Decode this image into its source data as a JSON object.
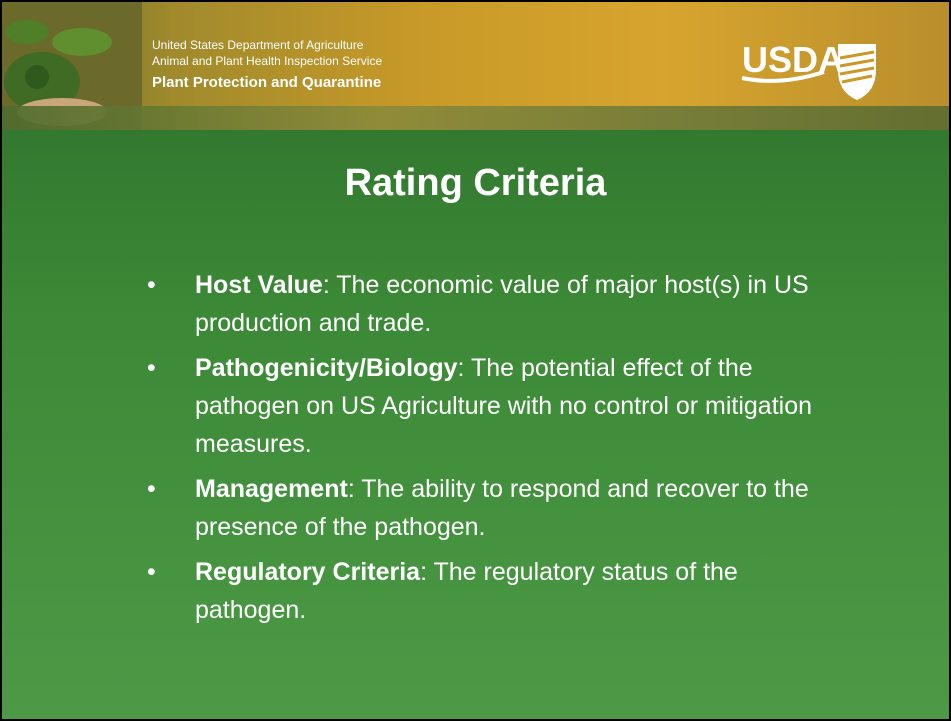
{
  "header": {
    "lines": [
      "United States Department of Agriculture",
      "Animal and Plant Health Inspection Service"
    ],
    "program": "Plant Protection and Quarantine",
    "logo": "USDA"
  },
  "title": "Rating Criteria",
  "bullets": [
    {
      "term": "Host Value",
      "text": ": The economic value of major host(s) in US production and trade."
    },
    {
      "term": "Pathogenicity/Biology",
      "text": ": The potential effect of the pathogen on US Agriculture with no control or mitigation measures."
    },
    {
      "term": "Management",
      "text": ": The ability to respond and recover to the presence of the pathogen."
    },
    {
      "term": "Regulatory Criteria",
      "text": ": The regulatory status of the pathogen."
    }
  ]
}
